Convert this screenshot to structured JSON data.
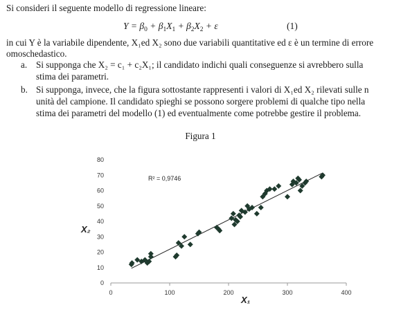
{
  "intro": "Si consideri il seguente modello di regressione lineare:",
  "equation": {
    "number": "(1)"
  },
  "definition_lines": [
    "in cui Y è la variabile dipendente, X₁ed X₂ sono due variabili quantitative ed ε è un termine di errore",
    "omoschedastico."
  ],
  "item_a": {
    "label": "a.",
    "lines": [
      "Si supponga che X₂ = c₁ + c₂X₁; il candidato indichi quali conseguenze si avrebbero sulla",
      "stima dei parametri."
    ]
  },
  "item_b": {
    "label": "b.",
    "lines": [
      "Si supponga, invece, che la figura sottostante rappresenti i valori di X₁ed X₂ rilevati sulle n",
      "unità del campione. Il candidato spieghi se possono sorgere problemi di qualche tipo nella",
      "stima dei parametri del modello (1) ed eventualmente come potrebbe gestire il problema."
    ]
  },
  "figure_title": "Figura 1",
  "chart_data": {
    "type": "scatter",
    "xlabel": "X₁",
    "ylabel": "X₂",
    "annotation": "R² = 0,9746",
    "xlim": [
      0,
      400
    ],
    "ylim": [
      0,
      80
    ],
    "x_ticks": [
      "0",
      "100",
      "200",
      "300",
      "400"
    ],
    "y_ticks": [
      "0",
      "10",
      "20",
      "30",
      "40",
      "50",
      "60",
      "70",
      "80"
    ],
    "trendline": {
      "x": [
        35,
        360
      ],
      "y": [
        9.5,
        71.5
      ]
    },
    "marker_color": "#1f3a2e",
    "points": [
      [
        35,
        12
      ],
      [
        36,
        13
      ],
      [
        45,
        15
      ],
      [
        52,
        14
      ],
      [
        58,
        15
      ],
      [
        62,
        13
      ],
      [
        65,
        14
      ],
      [
        68,
        19
      ],
      [
        68,
        17
      ],
      [
        110,
        17
      ],
      [
        112,
        18
      ],
      [
        115,
        26
      ],
      [
        120,
        24
      ],
      [
        125,
        30
      ],
      [
        135,
        25
      ],
      [
        148,
        32
      ],
      [
        150,
        33
      ],
      [
        180,
        36
      ],
      [
        183,
        35
      ],
      [
        185,
        34
      ],
      [
        205,
        42
      ],
      [
        208,
        45
      ],
      [
        210,
        38
      ],
      [
        212,
        41
      ],
      [
        215,
        40
      ],
      [
        218,
        44
      ],
      [
        220,
        43
      ],
      [
        222,
        47
      ],
      [
        228,
        46
      ],
      [
        232,
        50
      ],
      [
        235,
        48
      ],
      [
        240,
        49
      ],
      [
        248,
        45
      ],
      [
        255,
        49
      ],
      [
        258,
        56
      ],
      [
        262,
        58
      ],
      [
        265,
        60
      ],
      [
        270,
        61
      ],
      [
        278,
        61
      ],
      [
        285,
        63
      ],
      [
        300,
        56
      ],
      [
        308,
        64
      ],
      [
        310,
        66
      ],
      [
        315,
        65
      ],
      [
        318,
        68
      ],
      [
        320,
        67
      ],
      [
        322,
        60
      ],
      [
        325,
        63
      ],
      [
        330,
        65
      ],
      [
        332,
        66
      ],
      [
        358,
        69
      ],
      [
        360,
        70
      ]
    ]
  }
}
